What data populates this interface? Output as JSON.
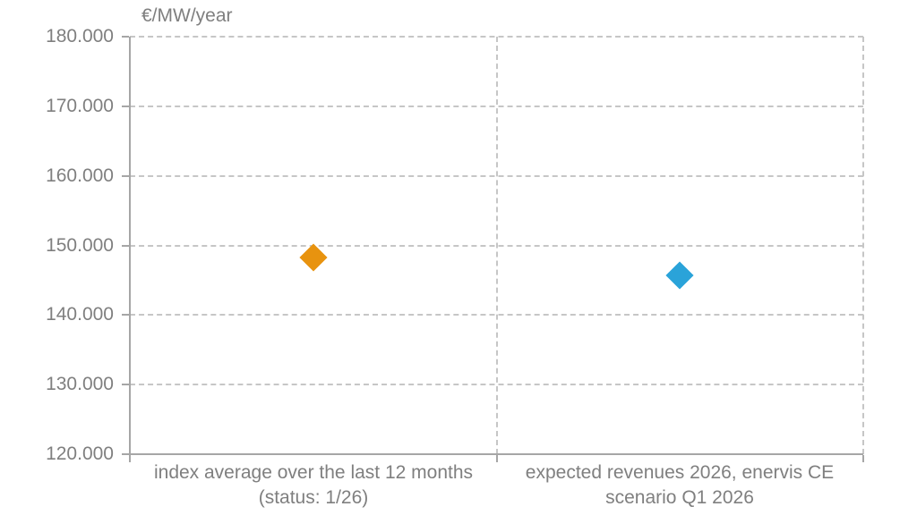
{
  "chart_data": {
    "type": "scatter",
    "marker_shape": "diamond",
    "title": "",
    "ylabel": "€/MW/year",
    "xlabel": "",
    "ylim": [
      120000,
      180000
    ],
    "ytick_interval": 10000,
    "grid": "dashed horizontal gridlines and dashed vertical category separators",
    "legend_position": "none",
    "yticks": [
      {
        "value": 180000,
        "label": "180.000"
      },
      {
        "value": 170000,
        "label": "170.000"
      },
      {
        "value": 160000,
        "label": "160.000"
      },
      {
        "value": 150000,
        "label": "150.000"
      },
      {
        "value": 140000,
        "label": "140.000"
      },
      {
        "value": 130000,
        "label": "130.000"
      },
      {
        "value": 120000,
        "label": "120.000"
      }
    ],
    "categories": [
      {
        "lines": [
          "index average over the last 12 months",
          "(status: 1/26)"
        ]
      },
      {
        "lines": [
          "expected revenues 2026, enervis CE",
          "scenario Q1 2026"
        ]
      }
    ],
    "points": [
      {
        "category_index": 0,
        "value": 148300,
        "color": "#E8930F",
        "name": "index-average-point"
      },
      {
        "category_index": 1,
        "value": 145700,
        "color": "#2AA3D9",
        "name": "expected-revenues-point"
      }
    ],
    "colors": {
      "text": "#7f7f7f",
      "axis": "#a6a6a6",
      "gridline": "#c6c6c6",
      "orange_marker": "#E8930F",
      "blue_marker": "#2AA3D9"
    }
  }
}
